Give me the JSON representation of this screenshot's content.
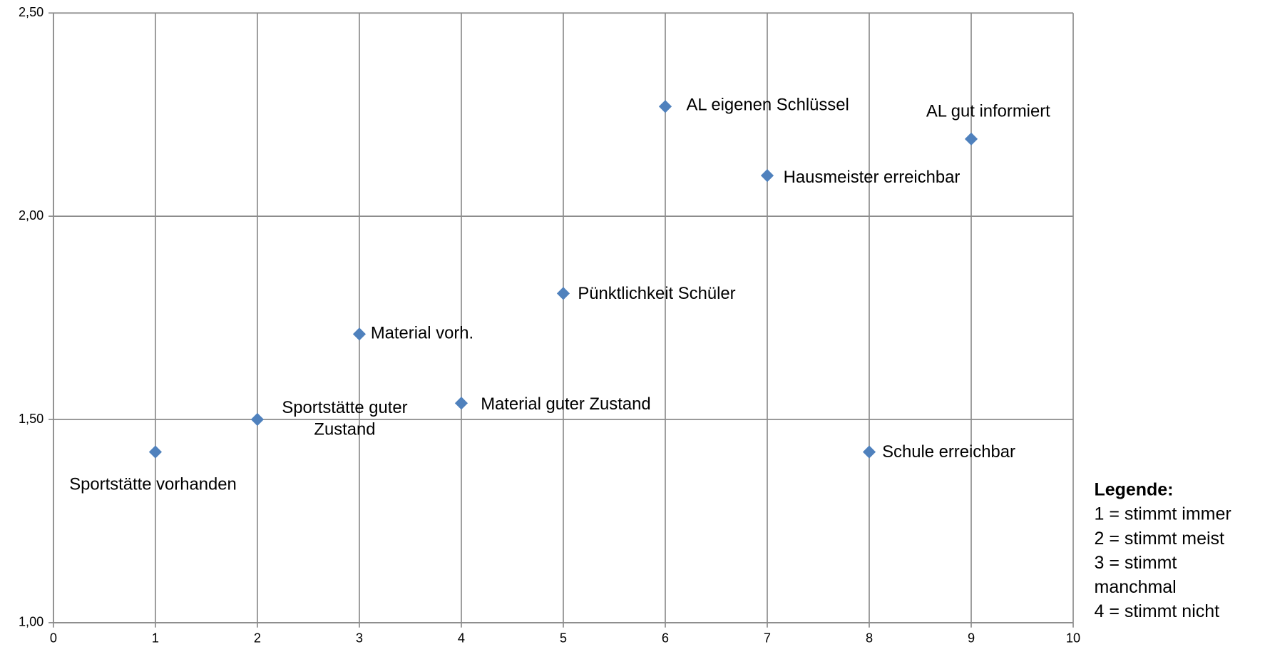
{
  "chart_data": {
    "type": "scatter",
    "x": [
      1,
      2,
      3,
      4,
      5,
      6,
      7,
      8,
      9
    ],
    "values": [
      1.42,
      1.5,
      1.71,
      1.54,
      1.81,
      2.27,
      2.1,
      1.42,
      2.19
    ],
    "labels": [
      "Sportstätte vorhanden",
      "Sportstätte guter Zustand",
      "Material vorh.",
      "Material guter Zustand",
      "Pünktlichkeit Schüler",
      "AL eigenen Schlüssel",
      "Hausmeister erreichbar",
      "Schule erreichbar",
      "AL gut informiert"
    ],
    "color": "#4f81bd",
    "xlim": [
      0,
      10
    ],
    "xticks": [
      0,
      1,
      2,
      3,
      4,
      5,
      6,
      7,
      8,
      9,
      10
    ],
    "ylim": [
      1,
      2.5
    ],
    "yticks": [
      {
        "value": 1,
        "label": "1,00"
      },
      {
        "value": 1.5,
        "label": "1,50"
      },
      {
        "value": 2,
        "label": "2,00"
      },
      {
        "value": 2.5,
        "label": "2,50"
      }
    ],
    "grid": true,
    "legend_box": {
      "title": "Legende:",
      "lines": [
        "1 = stimmt immer",
        "2 = stimmt meist",
        "3 = stimmt manchmal",
        "4 = stimmt nicht"
      ]
    }
  }
}
